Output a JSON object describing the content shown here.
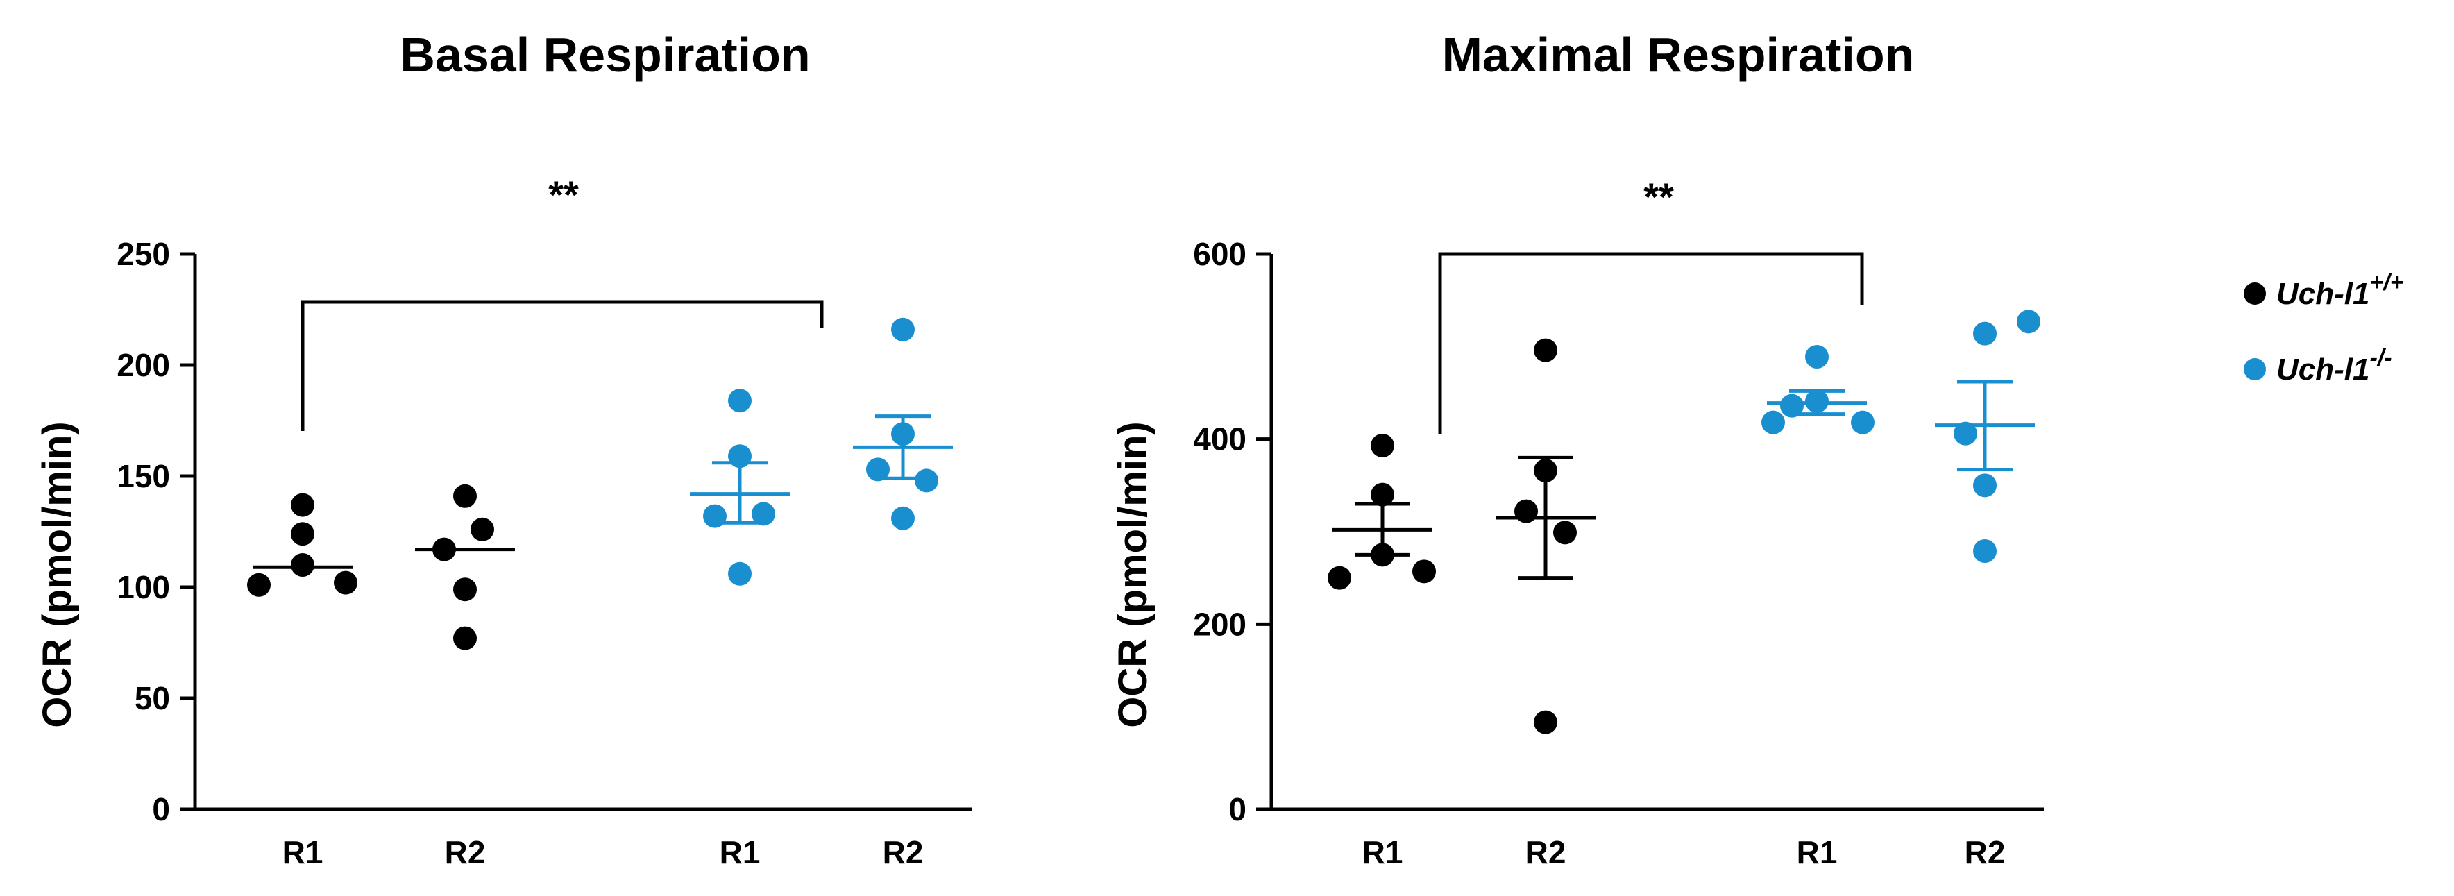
{
  "legend": [
    {
      "label": "Uch-l1",
      "sup": "+/+",
      "color": "#000000"
    },
    {
      "label": "Uch-l1",
      "sup": "-/-",
      "color": "#1a8fd0"
    }
  ],
  "chart_data": [
    {
      "type": "scatter",
      "title": "Basal Respiration",
      "ylabel": "OCR (pmol/min)",
      "xlabel": "",
      "ylim": [
        0,
        250
      ],
      "yticks": [
        0,
        50,
        100,
        150,
        200,
        250
      ],
      "significance": "**",
      "groups": [
        {
          "label": "R1",
          "series": "Uch-l1 +/+",
          "color": "#000000",
          "points": [
            137,
            124,
            110,
            102,
            101
          ],
          "mean": 109,
          "sem_low": 109,
          "sem_high": 109
        },
        {
          "label": "R2",
          "series": "Uch-l1 +/+",
          "color": "#000000",
          "points": [
            141,
            126,
            117,
            99,
            77
          ],
          "mean": 117,
          "sem_low": 117,
          "sem_high": 117
        },
        {
          "label": "R1",
          "series": "Uch-l1 -/-",
          "color": "#1a8fd0",
          "points": [
            184,
            159,
            132,
            133,
            106
          ],
          "mean": 142,
          "sem_low": 129,
          "sem_high": 156
        },
        {
          "label": "R2",
          "series": "Uch-l1 -/-",
          "color": "#1a8fd0",
          "points": [
            216,
            169,
            153,
            148,
            131
          ],
          "mean": 163,
          "sem_low": 149,
          "sem_high": 177
        }
      ]
    },
    {
      "type": "scatter",
      "title": "Maximal Respiration",
      "ylabel": "OCR (pmol/min)",
      "xlabel": "",
      "ylim": [
        0,
        600
      ],
      "yticks": [
        0,
        200,
        400,
        600
      ],
      "significance": "**",
      "groups": [
        {
          "label": "R1",
          "series": "Uch-l1 +/+",
          "color": "#000000",
          "points": [
            393,
            340,
            275,
            257,
            250
          ],
          "mean": 302,
          "sem_low": 275,
          "sem_high": 330
        },
        {
          "label": "R2",
          "series": "Uch-l1 +/+",
          "color": "#000000",
          "points": [
            496,
            366,
            322,
            299,
            94
          ],
          "mean": 315,
          "sem_low": 250,
          "sem_high": 380
        },
        {
          "label": "R1",
          "series": "Uch-l1 -/-",
          "color": "#1a8fd0",
          "points": [
            489,
            441,
            436,
            418,
            418
          ],
          "mean": 439,
          "sem_low": 427,
          "sem_high": 452
        },
        {
          "label": "R2",
          "series": "Uch-l1 -/-",
          "color": "#1a8fd0",
          "points": [
            527,
            514,
            406,
            350,
            279
          ],
          "mean": 415,
          "sem_low": 367,
          "sem_high": 462
        }
      ]
    }
  ]
}
